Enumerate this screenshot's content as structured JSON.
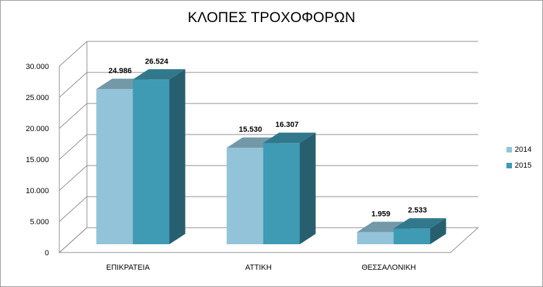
{
  "chart_data": {
    "type": "bar",
    "title": "ΚΛΟΠΕΣ ΤΡΟΧΟΦΟΡΩΝ",
    "categories": [
      "ΕΠΙΚΡΑΤΕΙΑ",
      "ΑΤΤΙΚΗ",
      "ΘΕΣΣΑΛΟΝΙΚΗ"
    ],
    "series": [
      {
        "name": "2014",
        "values": [
          24986,
          15530,
          1959
        ],
        "value_labels": [
          "24.986",
          "15.530",
          "1.959"
        ],
        "color": "#93c3d8"
      },
      {
        "name": "2015",
        "values": [
          26524,
          16307,
          2533
        ],
        "value_labels": [
          "26.524",
          "16.307",
          "2.533"
        ],
        "color": "#3f9ab3"
      }
    ],
    "ylim": [
      0,
      30000
    ],
    "yticks": [
      0,
      5000,
      10000,
      15000,
      20000,
      25000,
      30000
    ],
    "ytick_labels": [
      "0",
      "5.000",
      "10.000",
      "15.000",
      "20.000",
      "25.000",
      "30.000"
    ],
    "grid": true,
    "legend_position": "right",
    "three_d": true
  }
}
